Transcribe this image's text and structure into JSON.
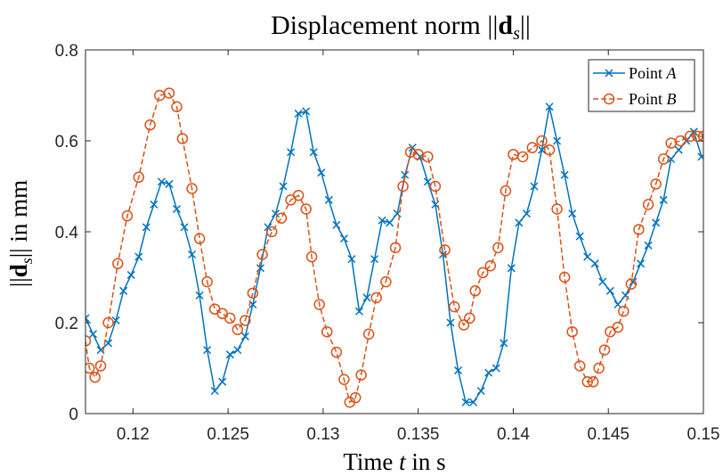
{
  "chart_data": {
    "type": "line",
    "title": "Displacement norm ||d_s||",
    "xlabel": "Time t in s",
    "ylabel": "||d_s|| in mm",
    "xlim": [
      0.1175,
      0.15
    ],
    "ylim": [
      0,
      0.8
    ],
    "xticks": [
      0.12,
      0.125,
      0.13,
      0.135,
      0.14,
      0.145,
      0.15
    ],
    "xtick_labels": [
      "0.12",
      "0.125",
      "0.13",
      "0.135",
      "0.14",
      "0.145",
      "0.15"
    ],
    "yticks": [
      0,
      0.2,
      0.4,
      0.6,
      0.8
    ],
    "ytick_labels": [
      "0",
      "0.2",
      "0.4",
      "0.6",
      "0.8"
    ],
    "legend_position": "top-right",
    "grid": false,
    "series": [
      {
        "name": "Point A",
        "color": "#0072BD",
        "line_style": "solid",
        "marker": "x",
        "x": [
          0.1175,
          0.1179,
          0.1183,
          0.1187,
          0.1191,
          0.1195,
          0.1199,
          0.1203,
          0.1207,
          0.1211,
          0.1215,
          0.1219,
          0.1223,
          0.1227,
          0.1231,
          0.1235,
          0.1239,
          0.1243,
          0.1247,
          0.1251,
          0.1255,
          0.1259,
          0.1263,
          0.1267,
          0.1271,
          0.1275,
          0.1279,
          0.1283,
          0.1287,
          0.1291,
          0.1295,
          0.1299,
          0.1303,
          0.1307,
          0.1311,
          0.1315,
          0.1319,
          0.1323,
          0.1327,
          0.1331,
          0.1335,
          0.1339,
          0.1343,
          0.1347,
          0.1351,
          0.1355,
          0.1359,
          0.1363,
          0.1367,
          0.1371,
          0.1375,
          0.1379,
          0.1383,
          0.1387,
          0.1391,
          0.1395,
          0.1399,
          0.1403,
          0.1407,
          0.1411,
          0.1415,
          0.1419,
          0.1423,
          0.1427,
          0.1431,
          0.1435,
          0.1439,
          0.1443,
          0.1447,
          0.1451,
          0.1455,
          0.1459,
          0.1463,
          0.1467,
          0.1471,
          0.1475,
          0.1479,
          0.1483,
          0.1487,
          0.1491,
          0.1495,
          0.1499
        ],
        "y": [
          0.21,
          0.175,
          0.14,
          0.155,
          0.205,
          0.27,
          0.305,
          0.345,
          0.41,
          0.46,
          0.51,
          0.505,
          0.45,
          0.41,
          0.35,
          0.26,
          0.14,
          0.05,
          0.07,
          0.13,
          0.14,
          0.17,
          0.24,
          0.32,
          0.41,
          0.44,
          0.5,
          0.575,
          0.66,
          0.665,
          0.575,
          0.53,
          0.47,
          0.415,
          0.385,
          0.34,
          0.225,
          0.255,
          0.34,
          0.425,
          0.42,
          0.44,
          0.525,
          0.585,
          0.565,
          0.51,
          0.46,
          0.35,
          0.2,
          0.095,
          0.025,
          0.025,
          0.05,
          0.09,
          0.1,
          0.155,
          0.32,
          0.42,
          0.44,
          0.5,
          0.58,
          0.675,
          0.6,
          0.525,
          0.44,
          0.39,
          0.345,
          0.33,
          0.29,
          0.27,
          0.24,
          0.26,
          0.29,
          0.33,
          0.37,
          0.42,
          0.47,
          0.56,
          0.58,
          0.6,
          0.62,
          0.565
        ]
      },
      {
        "name": "Point B",
        "color": "#D95319",
        "line_style": "dashed",
        "marker": "o",
        "x": [
          0.1175,
          0.1177,
          0.118,
          0.1183,
          0.1187,
          0.1192,
          0.1197,
          0.1203,
          0.1209,
          0.1214,
          0.1219,
          0.1223,
          0.1226,
          0.1231,
          0.1235,
          0.1239,
          0.1243,
          0.1247,
          0.1251,
          0.1255,
          0.1259,
          0.1263,
          0.1268,
          0.1273,
          0.1278,
          0.1283,
          0.1287,
          0.1291,
          0.1294,
          0.1298,
          0.1302,
          0.1307,
          0.1311,
          0.1314,
          0.1317,
          0.132,
          0.1324,
          0.1328,
          0.1333,
          0.1338,
          0.1342,
          0.1346,
          0.135,
          0.1355,
          0.1359,
          0.1364,
          0.1369,
          0.1374,
          0.1377,
          0.138,
          0.1384,
          0.1388,
          0.1392,
          0.1396,
          0.14,
          0.1405,
          0.141,
          0.1415,
          0.1419,
          0.1423,
          0.1427,
          0.1431,
          0.1435,
          0.1439,
          0.1442,
          0.1445,
          0.1448,
          0.1451,
          0.1455,
          0.1458,
          0.1462,
          0.1466,
          0.1471,
          0.1475,
          0.1479,
          0.1483,
          0.1488,
          0.1493,
          0.1497,
          0.15
        ],
        "y": [
          0.16,
          0.1,
          0.08,
          0.105,
          0.2,
          0.33,
          0.435,
          0.52,
          0.635,
          0.7,
          0.705,
          0.675,
          0.605,
          0.495,
          0.385,
          0.29,
          0.23,
          0.22,
          0.21,
          0.185,
          0.205,
          0.265,
          0.35,
          0.4,
          0.43,
          0.47,
          0.48,
          0.45,
          0.345,
          0.24,
          0.18,
          0.135,
          0.075,
          0.025,
          0.035,
          0.085,
          0.175,
          0.255,
          0.29,
          0.365,
          0.5,
          0.575,
          0.57,
          0.565,
          0.5,
          0.36,
          0.235,
          0.195,
          0.21,
          0.27,
          0.31,
          0.325,
          0.365,
          0.49,
          0.57,
          0.565,
          0.585,
          0.6,
          0.58,
          0.45,
          0.3,
          0.18,
          0.105,
          0.07,
          0.07,
          0.1,
          0.14,
          0.18,
          0.19,
          0.225,
          0.285,
          0.405,
          0.46,
          0.505,
          0.56,
          0.595,
          0.6,
          0.61,
          0.61,
          0.61
        ]
      }
    ]
  }
}
